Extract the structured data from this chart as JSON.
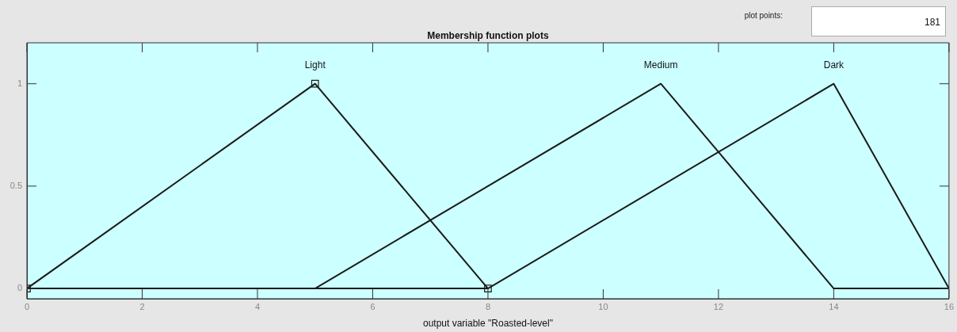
{
  "chart_data": {
    "type": "line",
    "title": "Membership function plots",
    "xlabel": "output variable \"Roasted-level\"",
    "annotations": [
      "plot points:",
      "181"
    ],
    "xlim": [
      0,
      16
    ],
    "xticks": [
      0,
      2,
      4,
      6,
      8,
      10,
      12,
      14,
      16
    ],
    "ylim": [
      -0.05,
      1.2
    ],
    "yticks": [
      0,
      0.5,
      1
    ],
    "grid": false,
    "legend": false,
    "marker": "none",
    "line_style": "solid",
    "series": [
      {
        "name": "Light",
        "color": "#1a1a1a",
        "x": [
          0,
          5,
          8
        ],
        "values": [
          0,
          1,
          0
        ],
        "marker": "square"
      },
      {
        "name": "Medium",
        "color": "#1a1a1a",
        "x": [
          0,
          5,
          11,
          14,
          16
        ],
        "values": [
          0,
          0,
          1,
          0,
          0
        ]
      },
      {
        "name": "Dark",
        "color": "#1a1a1a",
        "x": [
          0,
          8,
          14,
          16
        ],
        "values": [
          0,
          0,
          1,
          0
        ]
      }
    ]
  }
}
